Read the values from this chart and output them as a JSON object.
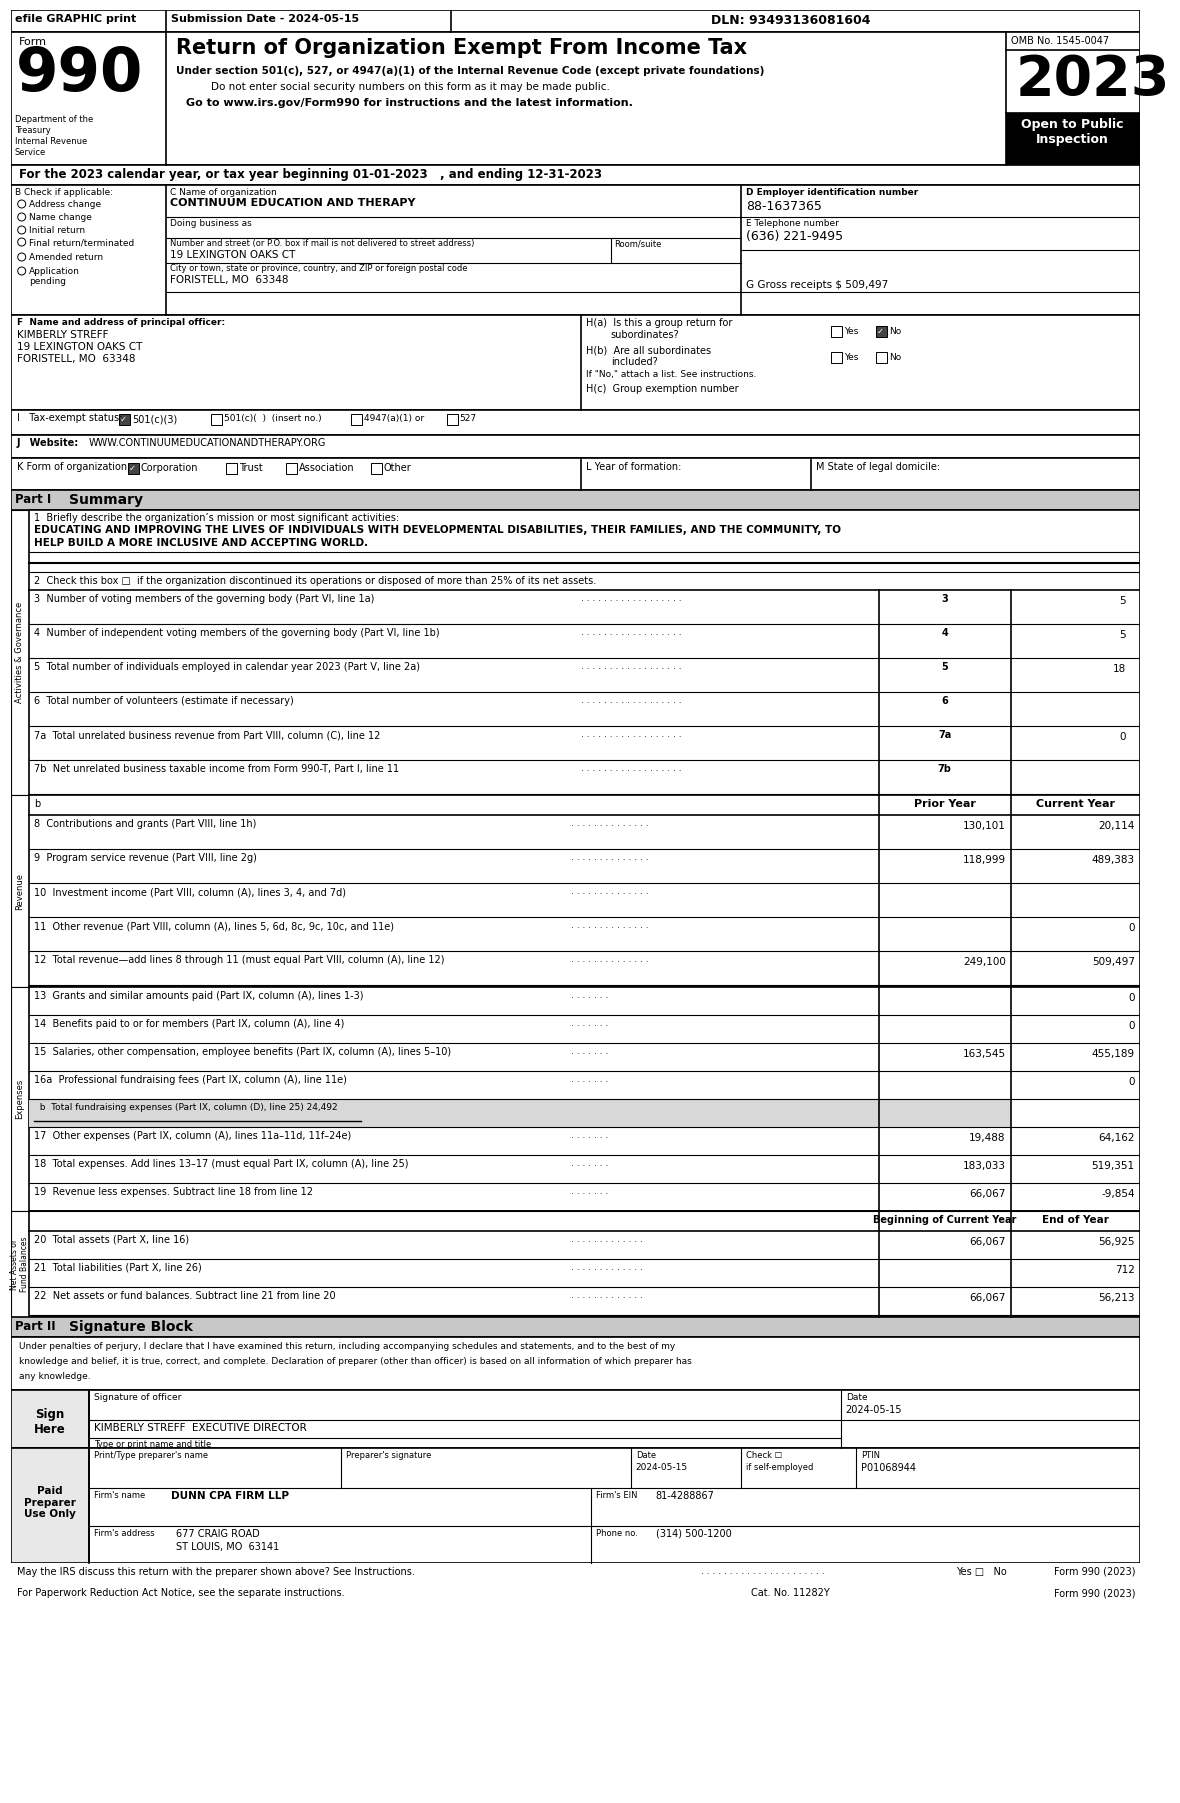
{
  "header_bar": {
    "efile_text": "efile GRAPHIC print",
    "submission_text": "Submission Date - 2024-05-15",
    "dln_text": "DLN: 93493136081604"
  },
  "form_title": {
    "form_label": "Form",
    "form_number": "990",
    "title": "Return of Organization Exempt From Income Tax",
    "subtitle1": "Under section 501(c), 527, or 4947(a)(1) of the Internal Revenue Code (except private foundations)",
    "subtitle2": "Do not enter social security numbers on this form as it may be made public.",
    "subtitle3": "Go to www.irs.gov/Form990 for instructions and the latest information.",
    "omb": "OMB No. 1545-0047",
    "year": "2023",
    "open_text": "Open to Public\nInspection",
    "dept1": "Department of the",
    "dept2": "Treasury",
    "dept3": "Internal Revenue"
  },
  "tax_year_line": "For the 2023 calendar year, or tax year beginning 01-01-2023   , and ending 12-31-2023",
  "section_b": {
    "label": "B Check if applicable:",
    "items": [
      "Address change",
      "Name change",
      "Initial return",
      "Final return/terminated",
      "Amended return",
      "Application\npending"
    ]
  },
  "section_c": {
    "label": "C Name of organization",
    "org_name": "CONTINUUM EDUCATION AND THERAPY",
    "dba_label": "Doing business as",
    "street_label": "Number and street (or P.O. box if mail is not delivered to street address)",
    "street": "19 LEXINGTON OAKS CT",
    "room_label": "Room/suite",
    "city_label": "City or town, state or province, country, and ZIP or foreign postal code",
    "city": "FORISTELL, MO  63348",
    "gross_receipts": "G Gross receipts $ 509,497"
  },
  "section_d": {
    "label": "D Employer identification number",
    "ein": "88-1637365"
  },
  "section_e": {
    "label": "E Telephone number",
    "phone": "(636) 221-9495"
  },
  "section_f": {
    "label": "F  Name and address of principal officer:",
    "name": "KIMBERLY STREFF",
    "street": "19 LEXINGTON OAKS CT",
    "city": "FORISTELL, MO  63348"
  },
  "section_h": {
    "ha_label": "H(a)  Is this a group return for",
    "ha_sub": "subordinates?",
    "hb_label": "H(b)  Are all subordinates",
    "hb_sub": "included?",
    "hb_note": "If \"No,\" attach a list. See instructions.",
    "hc_label": "H(c)  Group exemption number"
  },
  "section_i": {
    "label": "I   Tax-exempt status:"
  },
  "section_j": {
    "label": "J   Website:",
    "url": "WWW.CONTINUUMEDUCATIONANDTHERAPY.ORG"
  },
  "mission_label": "1  Briefly describe the organization’s mission or most significant activities:",
  "mission_text1": "EDUCATING AND IMPROVING THE LIVES OF INDIVIDUALS WITH DEVELOPMENTAL DISABILITIES, THEIR FAMILIES, AND THE COMMUNITY, TO",
  "mission_text2": "HELP BUILD A MORE INCLUSIVE AND ACCEPTING WORLD.",
  "line2": "2  Check this box □  if the organization discontinued its operations or disposed of more than 25% of its net assets.",
  "lines_gov": [
    {
      "num": "3",
      "text": "Number of voting members of the governing body (Part VI, line 1a)",
      "current": "5"
    },
    {
      "num": "4",
      "text": "Number of independent voting members of the governing body (Part VI, line 1b)",
      "current": "5"
    },
    {
      "num": "5",
      "text": "Total number of individuals employed in calendar year 2023 (Part V, line 2a)",
      "current": "18"
    },
    {
      "num": "6",
      "text": "Total number of volunteers (estimate if necessary)",
      "current": ""
    },
    {
      "num": "7a",
      "text": "Total unrelated business revenue from Part VIII, column (C), line 12",
      "current": "0"
    },
    {
      "num": "7b",
      "text": "Net unrelated business taxable income from Form 990-T, Part I, line 11",
      "current": ""
    }
  ],
  "lines_revenue": [
    {
      "num": "8",
      "text": "Contributions and grants (Part VIII, line 1h)",
      "prior": "130,101",
      "current": "20,114"
    },
    {
      "num": "9",
      "text": "Program service revenue (Part VIII, line 2g)",
      "prior": "118,999",
      "current": "489,383"
    },
    {
      "num": "10",
      "text": "Investment income (Part VIII, column (A), lines 3, 4, and 7d)",
      "prior": "",
      "current": ""
    },
    {
      "num": "11",
      "text": "Other revenue (Part VIII, column (A), lines 5, 6d, 8c, 9c, 10c, and 11e)",
      "prior": "",
      "current": "0"
    },
    {
      "num": "12",
      "text": "Total revenue—add lines 8 through 11 (must equal Part VIII, column (A), line 12)",
      "prior": "249,100",
      "current": "509,497"
    }
  ],
  "lines_expenses": [
    {
      "num": "13",
      "text": "Grants and similar amounts paid (Part IX, column (A), lines 1-3)",
      "prior": "",
      "current": "0"
    },
    {
      "num": "14",
      "text": "Benefits paid to or for members (Part IX, column (A), line 4)",
      "prior": "",
      "current": "0"
    },
    {
      "num": "15",
      "text": "Salaries, other compensation, employee benefits (Part IX, column (A), lines 5–10)",
      "prior": "163,545",
      "current": "455,189"
    },
    {
      "num": "16a",
      "text": "Professional fundraising fees (Part IX, column (A), line 11e)",
      "prior": "",
      "current": "0"
    },
    {
      "num": "b",
      "text": "  b  Total fundraising expenses (Part IX, column (D), line 25) 24,492",
      "prior": "",
      "current": "",
      "shaded": true
    },
    {
      "num": "17",
      "text": "Other expenses (Part IX, column (A), lines 11a–11d, 11f–24e)",
      "prior": "19,488",
      "current": "64,162"
    },
    {
      "num": "18",
      "text": "Total expenses. Add lines 13–17 (must equal Part IX, column (A), line 25)",
      "prior": "183,033",
      "current": "519,351"
    },
    {
      "num": "19",
      "text": "Revenue less expenses. Subtract line 18 from line 12",
      "prior": "66,067",
      "current": "-9,854"
    }
  ],
  "lines_net": [
    {
      "num": "20",
      "text": "Total assets (Part X, line 16)",
      "prior": "66,067",
      "current": "56,925"
    },
    {
      "num": "21",
      "text": "Total liabilities (Part X, line 26)",
      "prior": "",
      "current": "712"
    },
    {
      "num": "22",
      "text": "Net assets or fund balances. Subtract line 21 from line 20",
      "prior": "66,067",
      "current": "56,213"
    }
  ],
  "part2_text": "Under penalties of perjury, I declare that I have examined this return, including accompanying schedules and statements, and to the best of my\nknowledge and belief, it is true, correct, and complete. Declaration of preparer (other than officer) is based on all information of which preparer has\nany knowledge.",
  "sign_date": "2024-05-15",
  "sign_name": "KIMBERLY STREFF  EXECUTIVE DIRECTOR",
  "prep_date": "2024-05-15",
  "ptin_val": "P01068944",
  "firm_val": "DUNN CPA FIRM LLP",
  "firm_ein_val": "81-4288867",
  "firm_addr_val": "677 CRAIG ROAD",
  "firm_city_val": "ST LOUIS, MO  63141",
  "phone_val": "(314) 500-1200",
  "footer_left": "May the IRS discuss this return with the preparer shown above? See Instructions.",
  "footer_cat": "Cat. No. 11282Y",
  "paperwork_text": "For Paperwork Reduction Act Notice, see the separate instructions."
}
